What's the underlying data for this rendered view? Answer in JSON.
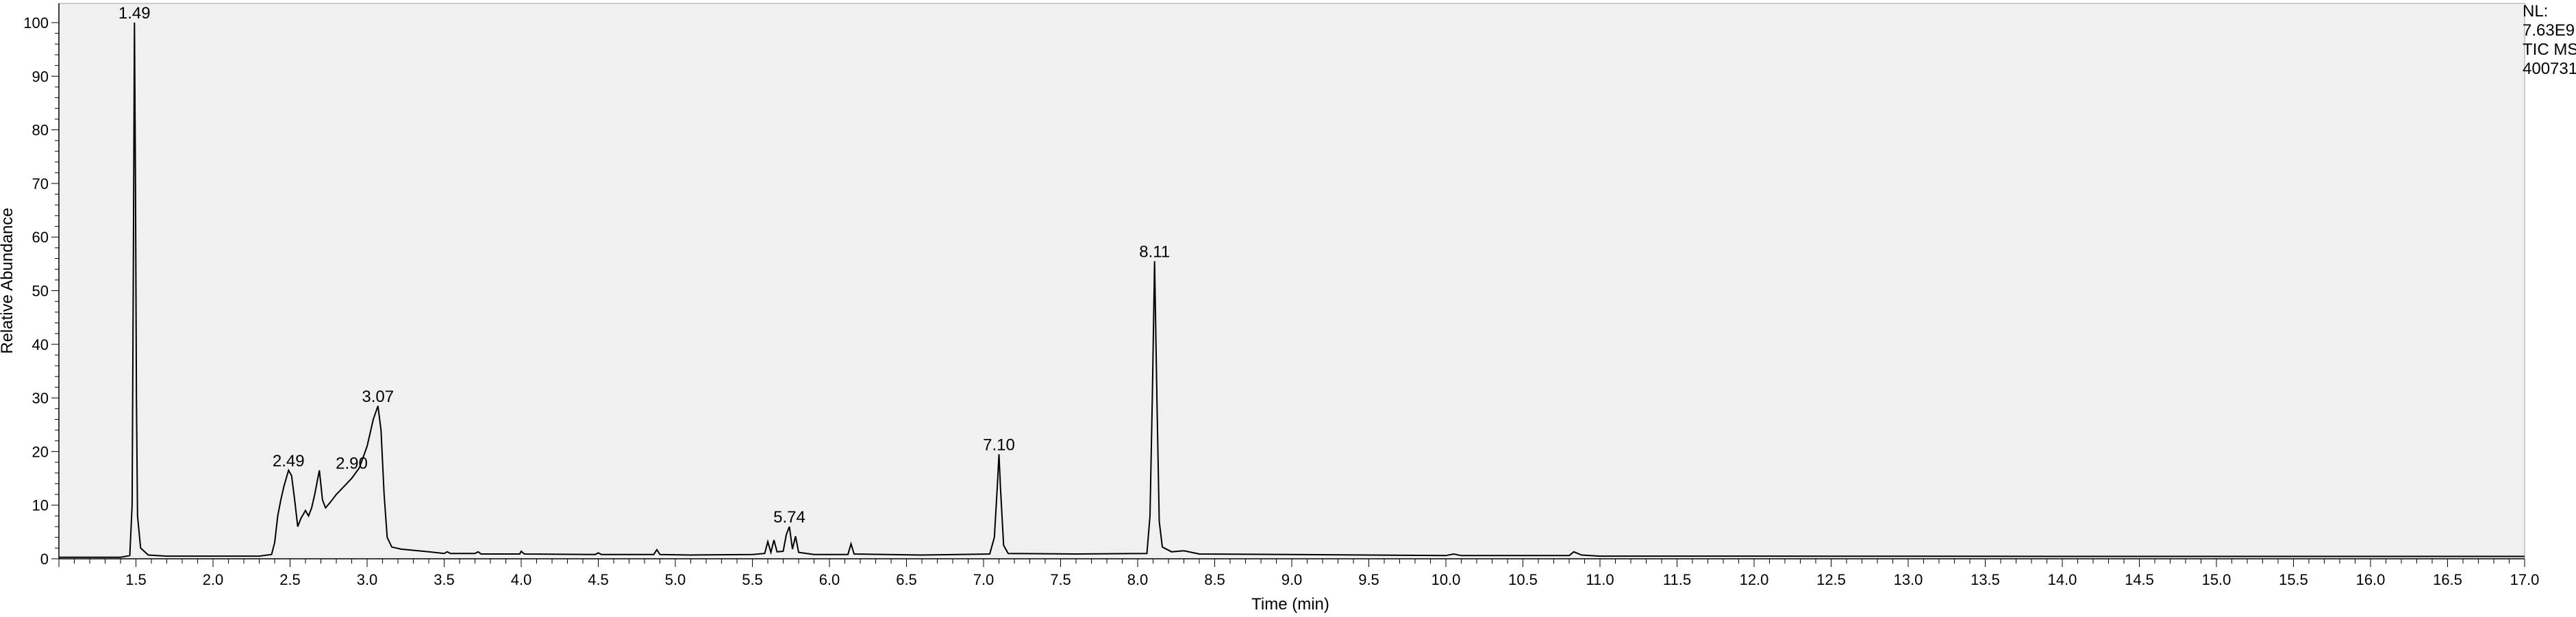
{
  "chart_data": {
    "type": "line",
    "title": "",
    "xlabel": "Time (min)",
    "ylabel": "Relative Abundance",
    "xlim": [
      1.0,
      17.0
    ],
    "ylim": [
      0,
      100
    ],
    "grid": false,
    "plot_background": "#f0f0f0",
    "trace_color": "#000000",
    "x_ticks": [
      "1.5",
      "2.0",
      "2.5",
      "3.0",
      "3.5",
      "4.0",
      "4.5",
      "5.0",
      "5.5",
      "6.0",
      "6.5",
      "7.0",
      "7.5",
      "8.0",
      "8.5",
      "9.0",
      "9.5",
      "10.0",
      "10.5",
      "11.0",
      "11.5",
      "12.0",
      "12.5",
      "13.0",
      "13.5",
      "14.0",
      "14.5",
      "15.0",
      "15.5",
      "16.0",
      "16.5",
      "17.0"
    ],
    "y_ticks": [
      "0",
      "10",
      "20",
      "30",
      "40",
      "50",
      "60",
      "70",
      "80",
      "90",
      "100"
    ],
    "peak_labels": [
      {
        "x": 1.49,
        "y": 100,
        "text": "1.49"
      },
      {
        "x": 2.49,
        "y": 16.5,
        "text": "2.49"
      },
      {
        "x": 2.9,
        "y": 16.0,
        "text": "2.90"
      },
      {
        "x": 3.07,
        "y": 28.5,
        "text": "3.07"
      },
      {
        "x": 5.74,
        "y": 6.0,
        "text": "5.74"
      },
      {
        "x": 7.1,
        "y": 19.5,
        "text": "7.10"
      },
      {
        "x": 8.11,
        "y": 55.5,
        "text": "8.11"
      }
    ],
    "series": [
      {
        "points": [
          [
            1.0,
            0.3
          ],
          [
            1.4,
            0.3
          ],
          [
            1.46,
            0.6
          ],
          [
            1.475,
            10
          ],
          [
            1.483,
            55
          ],
          [
            1.49,
            100
          ],
          [
            1.497,
            70
          ],
          [
            1.503,
            30
          ],
          [
            1.51,
            8
          ],
          [
            1.53,
            2
          ],
          [
            1.58,
            0.7
          ],
          [
            1.7,
            0.5
          ],
          [
            2.0,
            0.5
          ],
          [
            2.3,
            0.5
          ],
          [
            2.38,
            0.8
          ],
          [
            2.4,
            3
          ],
          [
            2.42,
            8
          ],
          [
            2.44,
            11
          ],
          [
            2.46,
            13.5
          ],
          [
            2.48,
            15.5
          ],
          [
            2.49,
            16.5
          ],
          [
            2.51,
            15.5
          ],
          [
            2.53,
            11
          ],
          [
            2.55,
            6
          ],
          [
            2.57,
            7.5
          ],
          [
            2.6,
            9
          ],
          [
            2.62,
            8
          ],
          [
            2.64,
            9.5
          ],
          [
            2.66,
            12
          ],
          [
            2.68,
            15
          ],
          [
            2.69,
            16.5
          ],
          [
            2.71,
            11
          ],
          [
            2.73,
            9.5
          ],
          [
            2.76,
            10.5
          ],
          [
            2.8,
            12
          ],
          [
            2.85,
            13.5
          ],
          [
            2.9,
            15
          ],
          [
            2.95,
            17
          ],
          [
            3.0,
            21
          ],
          [
            3.04,
            26
          ],
          [
            3.07,
            28.5
          ],
          [
            3.09,
            24
          ],
          [
            3.11,
            12
          ],
          [
            3.13,
            4
          ],
          [
            3.16,
            2.2
          ],
          [
            3.22,
            1.8
          ],
          [
            3.4,
            1.3
          ],
          [
            3.5,
            1.0
          ],
          [
            3.52,
            1.3
          ],
          [
            3.54,
            1.0
          ],
          [
            3.7,
            1.0
          ],
          [
            3.72,
            1.3
          ],
          [
            3.74,
            0.9
          ],
          [
            3.99,
            0.9
          ],
          [
            4.0,
            1.4
          ],
          [
            4.02,
            0.9
          ],
          [
            4.48,
            0.8
          ],
          [
            4.5,
            1.1
          ],
          [
            4.52,
            0.8
          ],
          [
            4.86,
            0.8
          ],
          [
            4.88,
            1.7
          ],
          [
            4.9,
            0.8
          ],
          [
            5.1,
            0.7
          ],
          [
            5.5,
            0.8
          ],
          [
            5.58,
            1.0
          ],
          [
            5.6,
            3.2
          ],
          [
            5.62,
            1.2
          ],
          [
            5.64,
            3.5
          ],
          [
            5.66,
            1.3
          ],
          [
            5.7,
            1.4
          ],
          [
            5.72,
            4.5
          ],
          [
            5.74,
            6.0
          ],
          [
            5.76,
            1.8
          ],
          [
            5.78,
            4.2
          ],
          [
            5.8,
            1.2
          ],
          [
            5.9,
            0.8
          ],
          [
            6.12,
            0.8
          ],
          [
            6.14,
            2.8
          ],
          [
            6.16,
            0.9
          ],
          [
            6.6,
            0.7
          ],
          [
            7.04,
            0.9
          ],
          [
            7.07,
            4
          ],
          [
            7.09,
            14
          ],
          [
            7.1,
            19.5
          ],
          [
            7.11,
            13
          ],
          [
            7.13,
            2.5
          ],
          [
            7.16,
            1.0
          ],
          [
            7.6,
            0.9
          ],
          [
            8.06,
            1.0
          ],
          [
            8.08,
            8
          ],
          [
            8.095,
            30
          ],
          [
            8.11,
            55.5
          ],
          [
            8.125,
            30
          ],
          [
            8.14,
            7
          ],
          [
            8.16,
            2.2
          ],
          [
            8.22,
            1.3
          ],
          [
            8.3,
            1.5
          ],
          [
            8.4,
            0.9
          ],
          [
            9.0,
            0.8
          ],
          [
            10.0,
            0.6
          ],
          [
            10.05,
            0.9
          ],
          [
            10.1,
            0.6
          ],
          [
            10.8,
            0.6
          ],
          [
            10.83,
            1.3
          ],
          [
            10.88,
            0.7
          ],
          [
            11.0,
            0.5
          ],
          [
            12.0,
            0.5
          ],
          [
            14.0,
            0.45
          ],
          [
            17.0,
            0.45
          ]
        ]
      }
    ]
  },
  "info": {
    "line1": "NL:",
    "line2": "7.63E9",
    "line3": "TIC MS",
    "line4": "400731"
  }
}
